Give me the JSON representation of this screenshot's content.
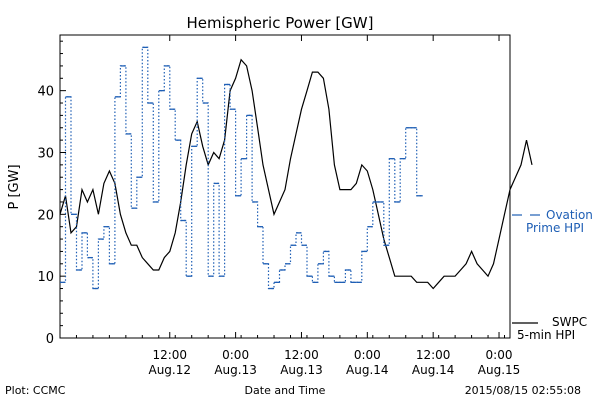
{
  "chart_data": {
    "type": "line",
    "title": "Hemispheric Power [GW]",
    "xlabel": "Date and Time",
    "ylabel": "P [GW]",
    "ylim": [
      0,
      49
    ],
    "yticks": [
      0,
      10,
      20,
      30,
      40
    ],
    "xlim": [
      "2015-08-11 16:00",
      "2015-08-15 02:00"
    ],
    "xticks": [
      {
        "line1": "12:00",
        "line2": "Aug.12",
        "t": "2015-08-12 12:00"
      },
      {
        "line1": "0:00",
        "line2": "Aug.13",
        "t": "2015-08-13 00:00"
      },
      {
        "line1": "12:00",
        "line2": "Aug.13",
        "t": "2015-08-13 12:00"
      },
      {
        "line1": "0:00",
        "line2": "Aug.14",
        "t": "2015-08-14 00:00"
      },
      {
        "line1": "12:00",
        "line2": "Aug.14",
        "t": "2015-08-14 12:00"
      },
      {
        "line1": "0:00",
        "line2": "Aug.15",
        "t": "2015-08-15 00:00"
      }
    ],
    "series": [
      {
        "name_line1": "SWPC",
        "name_line2": "5-min HPI",
        "color": "#000000",
        "style": "solid",
        "points": [
          [
            "2015-08-11 16:00",
            20
          ],
          [
            "2015-08-11 17:00",
            23
          ],
          [
            "2015-08-11 18:00",
            17
          ],
          [
            "2015-08-11 19:00",
            18
          ],
          [
            "2015-08-11 20:00",
            24
          ],
          [
            "2015-08-11 21:00",
            22
          ],
          [
            "2015-08-11 22:00",
            24
          ],
          [
            "2015-08-11 23:00",
            20
          ],
          [
            "2015-08-12 00:00",
            25
          ],
          [
            "2015-08-12 01:00",
            27
          ],
          [
            "2015-08-12 02:00",
            25
          ],
          [
            "2015-08-12 03:00",
            20
          ],
          [
            "2015-08-12 04:00",
            17
          ],
          [
            "2015-08-12 05:00",
            15
          ],
          [
            "2015-08-12 06:00",
            15
          ],
          [
            "2015-08-12 07:00",
            13
          ],
          [
            "2015-08-12 08:00",
            12
          ],
          [
            "2015-08-12 09:00",
            11
          ],
          [
            "2015-08-12 10:00",
            11
          ],
          [
            "2015-08-12 11:00",
            13
          ],
          [
            "2015-08-12 12:00",
            14
          ],
          [
            "2015-08-12 13:00",
            17
          ],
          [
            "2015-08-12 14:00",
            22
          ],
          [
            "2015-08-12 15:00",
            28
          ],
          [
            "2015-08-12 16:00",
            33
          ],
          [
            "2015-08-12 17:00",
            35
          ],
          [
            "2015-08-12 18:00",
            31
          ],
          [
            "2015-08-12 19:00",
            28
          ],
          [
            "2015-08-12 20:00",
            30
          ],
          [
            "2015-08-12 21:00",
            29
          ],
          [
            "2015-08-12 22:00",
            32
          ],
          [
            "2015-08-12 23:00",
            40
          ],
          [
            "2015-08-13 00:00",
            42
          ],
          [
            "2015-08-13 01:00",
            45
          ],
          [
            "2015-08-13 02:00",
            44
          ],
          [
            "2015-08-13 03:00",
            40
          ],
          [
            "2015-08-13 04:00",
            34
          ],
          [
            "2015-08-13 05:00",
            28
          ],
          [
            "2015-08-13 06:00",
            24
          ],
          [
            "2015-08-13 07:00",
            20
          ],
          [
            "2015-08-13 08:00",
            22
          ],
          [
            "2015-08-13 09:00",
            24
          ],
          [
            "2015-08-13 10:00",
            29
          ],
          [
            "2015-08-13 11:00",
            33
          ],
          [
            "2015-08-13 12:00",
            37
          ],
          [
            "2015-08-13 13:00",
            40
          ],
          [
            "2015-08-13 14:00",
            43
          ],
          [
            "2015-08-13 15:00",
            43
          ],
          [
            "2015-08-13 16:00",
            42
          ],
          [
            "2015-08-13 17:00",
            37
          ],
          [
            "2015-08-13 18:00",
            28
          ],
          [
            "2015-08-13 19:00",
            24
          ],
          [
            "2015-08-13 20:00",
            24
          ],
          [
            "2015-08-13 21:00",
            24
          ],
          [
            "2015-08-13 22:00",
            25
          ],
          [
            "2015-08-13 23:00",
            28
          ],
          [
            "2015-08-14 00:00",
            27
          ],
          [
            "2015-08-14 01:00",
            24
          ],
          [
            "2015-08-14 02:00",
            20
          ],
          [
            "2015-08-14 03:00",
            16
          ],
          [
            "2015-08-14 04:00",
            13
          ],
          [
            "2015-08-14 05:00",
            10
          ],
          [
            "2015-08-14 06:00",
            10
          ],
          [
            "2015-08-14 07:00",
            10
          ],
          [
            "2015-08-14 08:00",
            10
          ],
          [
            "2015-08-14 09:00",
            9
          ],
          [
            "2015-08-14 10:00",
            9
          ],
          [
            "2015-08-14 11:00",
            9
          ],
          [
            "2015-08-14 12:00",
            8
          ],
          [
            "2015-08-14 13:00",
            9
          ],
          [
            "2015-08-14 14:00",
            10
          ],
          [
            "2015-08-14 15:00",
            10
          ],
          [
            "2015-08-14 16:00",
            10
          ],
          [
            "2015-08-14 17:00",
            11
          ],
          [
            "2015-08-14 18:00",
            12
          ],
          [
            "2015-08-14 19:00",
            14
          ],
          [
            "2015-08-14 20:00",
            12
          ],
          [
            "2015-08-14 21:00",
            11
          ],
          [
            "2015-08-14 22:00",
            10
          ],
          [
            "2015-08-14 23:00",
            12
          ],
          [
            "2015-08-15 00:00",
            16
          ],
          [
            "2015-08-15 01:00",
            20
          ],
          [
            "2015-08-15 02:00",
            24
          ],
          [
            "2015-08-15 03:00",
            26
          ],
          [
            "2015-08-15 04:00",
            28
          ],
          [
            "2015-08-15 05:00",
            32
          ],
          [
            "2015-08-15 06:00",
            28
          ]
        ]
      },
      {
        "name_line1": "Ovation",
        "name_line2": "Prime HPI",
        "color": "#1f5fb5",
        "style": "stepped-dotted",
        "points": [
          [
            "2015-08-11 16:00",
            9
          ],
          [
            "2015-08-11 17:00",
            39
          ],
          [
            "2015-08-11 18:00",
            20
          ],
          [
            "2015-08-11 19:00",
            11
          ],
          [
            "2015-08-11 20:00",
            17
          ],
          [
            "2015-08-11 21:00",
            13
          ],
          [
            "2015-08-11 22:00",
            8
          ],
          [
            "2015-08-11 23:00",
            16
          ],
          [
            "2015-08-12 00:00",
            18
          ],
          [
            "2015-08-12 01:00",
            12
          ],
          [
            "2015-08-12 02:00",
            39
          ],
          [
            "2015-08-12 03:00",
            44
          ],
          [
            "2015-08-12 04:00",
            33
          ],
          [
            "2015-08-12 05:00",
            21
          ],
          [
            "2015-08-12 06:00",
            26
          ],
          [
            "2015-08-12 07:00",
            47
          ],
          [
            "2015-08-12 08:00",
            38
          ],
          [
            "2015-08-12 09:00",
            22
          ],
          [
            "2015-08-12 10:00",
            40
          ],
          [
            "2015-08-12 11:00",
            44
          ],
          [
            "2015-08-12 12:00",
            37
          ],
          [
            "2015-08-12 13:00",
            32
          ],
          [
            "2015-08-12 14:00",
            19
          ],
          [
            "2015-08-12 15:00",
            10
          ],
          [
            "2015-08-12 16:00",
            31
          ],
          [
            "2015-08-12 17:00",
            42
          ],
          [
            "2015-08-12 18:00",
            38
          ],
          [
            "2015-08-12 19:00",
            10
          ],
          [
            "2015-08-12 20:00",
            25
          ],
          [
            "2015-08-12 21:00",
            10
          ],
          [
            "2015-08-12 22:00",
            41
          ],
          [
            "2015-08-12 23:00",
            37
          ],
          [
            "2015-08-13 00:00",
            23
          ],
          [
            "2015-08-13 01:00",
            29
          ],
          [
            "2015-08-13 02:00",
            36
          ],
          [
            "2015-08-13 03:00",
            22
          ],
          [
            "2015-08-13 04:00",
            18
          ],
          [
            "2015-08-13 05:00",
            12
          ],
          [
            "2015-08-13 06:00",
            8
          ],
          [
            "2015-08-13 07:00",
            9
          ],
          [
            "2015-08-13 08:00",
            11
          ],
          [
            "2015-08-13 09:00",
            12
          ],
          [
            "2015-08-13 10:00",
            15
          ],
          [
            "2015-08-13 11:00",
            17
          ],
          [
            "2015-08-13 12:00",
            15
          ],
          [
            "2015-08-13 13:00",
            10
          ],
          [
            "2015-08-13 14:00",
            9
          ],
          [
            "2015-08-13 15:00",
            12
          ],
          [
            "2015-08-13 16:00",
            14
          ],
          [
            "2015-08-13 17:00",
            10
          ],
          [
            "2015-08-13 18:00",
            9
          ],
          [
            "2015-08-13 19:00",
            9
          ],
          [
            "2015-08-13 20:00",
            11
          ],
          [
            "2015-08-13 21:00",
            9
          ],
          [
            "2015-08-13 22:00",
            9
          ],
          [
            "2015-08-13 23:00",
            14
          ],
          [
            "2015-08-14 00:00",
            18
          ],
          [
            "2015-08-14 01:00",
            22
          ],
          [
            "2015-08-14 02:00",
            22
          ],
          [
            "2015-08-14 03:00",
            15
          ],
          [
            "2015-08-14 04:00",
            29
          ],
          [
            "2015-08-14 05:00",
            22
          ],
          [
            "2015-08-14 06:00",
            29
          ],
          [
            "2015-08-14 07:00",
            34
          ],
          [
            "2015-08-14 08:00",
            34
          ],
          [
            "2015-08-14 09:00",
            23
          ]
        ]
      }
    ]
  },
  "footer": {
    "left": "Plot: CCMC",
    "center": "Date and Time",
    "right": "2015/08/15 02:55:08"
  }
}
